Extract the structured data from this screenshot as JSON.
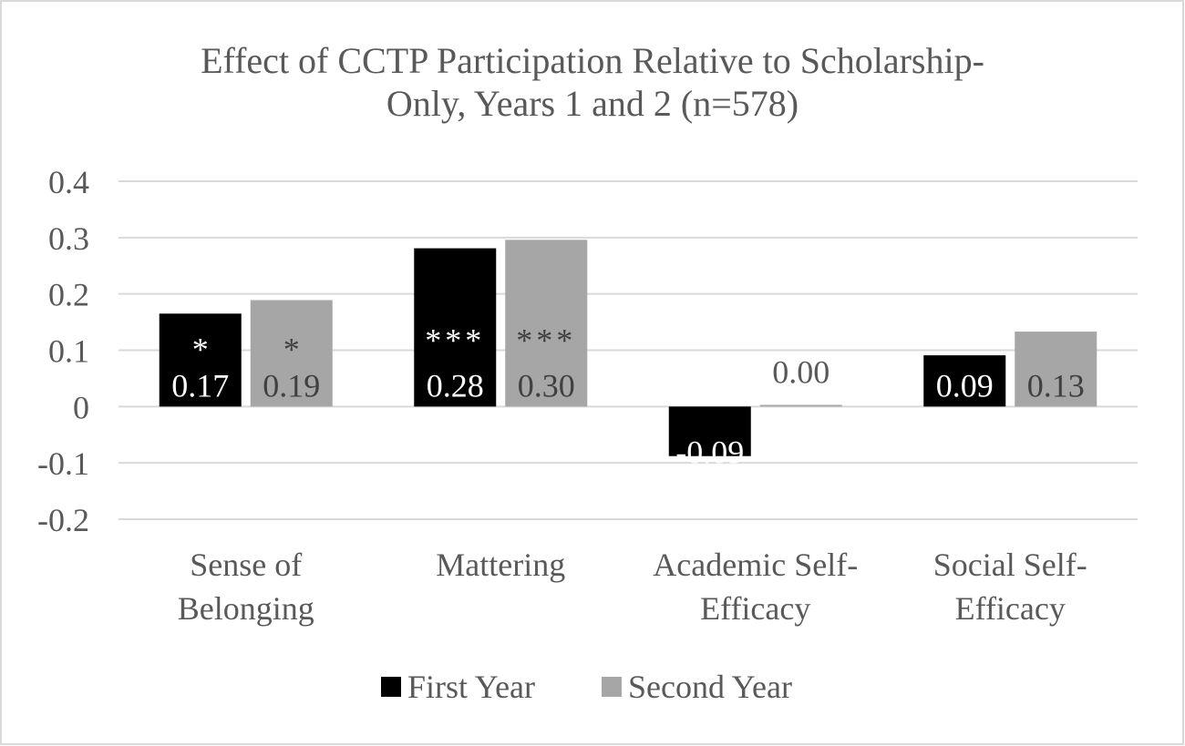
{
  "chart_data": {
    "type": "bar",
    "title_lines": [
      "Effect of CCTP Participation Relative to Scholarship-",
      "Only, Years 1 and 2 (n=578)"
    ],
    "categories": [
      [
        "Sense of",
        "Belonging"
      ],
      [
        "Mattering"
      ],
      [
        "Academic Self-",
        "Efficacy"
      ],
      [
        "Social Self-",
        "Efficacy"
      ]
    ],
    "y_ticks": [
      "0.4",
      "0.3",
      "0.2",
      "0.1",
      "0",
      "-0.1",
      "-0.2"
    ],
    "ylim": [
      -0.2,
      0.4
    ],
    "grid": true,
    "legend_position": "bottom",
    "series": [
      {
        "name": "First Year",
        "color": "#000000",
        "label_color": "#ffffff",
        "values": [
          0.165,
          0.281,
          -0.088,
          0.091
        ],
        "labels": [
          "0.17",
          "0.28",
          "-0.09",
          "0.09"
        ],
        "significance": [
          "*",
          "***",
          "",
          ""
        ]
      },
      {
        "name": "Second Year",
        "color": "#a6a6a6",
        "label_color": "#404040",
        "values": [
          0.189,
          0.296,
          0.003,
          0.133
        ],
        "labels": [
          "0.19",
          "0.30",
          "0.00",
          "0.13"
        ],
        "significance": [
          "*",
          "***",
          "",
          ""
        ]
      }
    ],
    "colors": {
      "gridline": "#d9d9d9",
      "text": "#595959",
      "axis": "#d9d9d9",
      "border": "#d9d9d9"
    }
  }
}
